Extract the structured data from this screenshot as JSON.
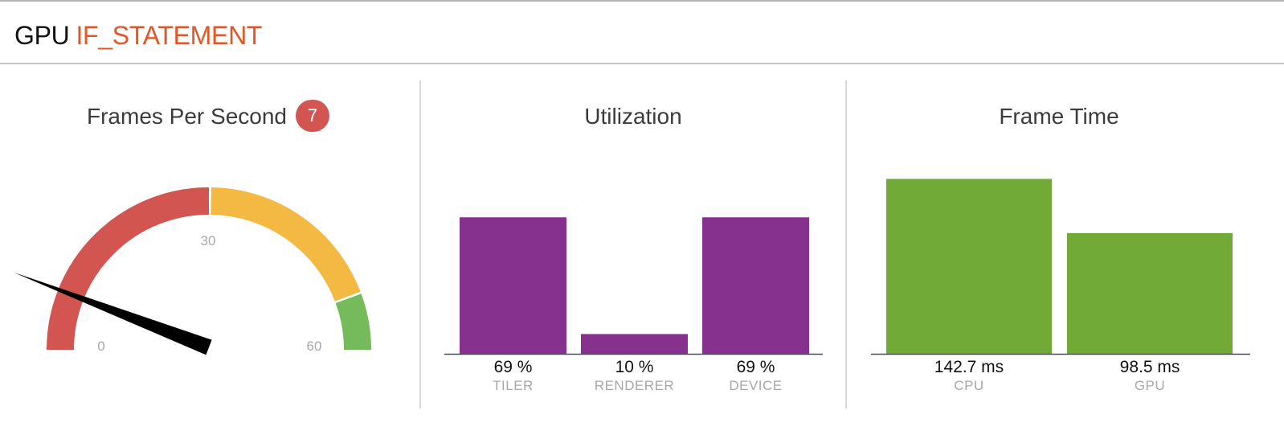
{
  "header": {
    "prefix": "GPU",
    "name": "IF_STATEMENT",
    "name_color": "#e0582a"
  },
  "fps_panel": {
    "title": "Frames Per Second",
    "badge_value": "7",
    "badge_color": "#d25552",
    "gauge": {
      "min": 0,
      "max": 60,
      "value": 7,
      "tick_labels": [
        "0",
        "30",
        "60"
      ],
      "zones": [
        {
          "from": 0,
          "to": 30,
          "color": "#d25552"
        },
        {
          "from": 30,
          "to": 53,
          "color": "#f3b943"
        },
        {
          "from": 53,
          "to": 60,
          "color": "#75bb5c"
        }
      ],
      "needle_color": "#000000"
    }
  },
  "utilization_panel": {
    "title": "Utilization",
    "bar_color": "#86318d",
    "ylim": [
      0,
      100
    ],
    "chart_data": {
      "type": "bar",
      "categories": [
        "TILER",
        "RENDERER",
        "DEVICE"
      ],
      "values": [
        69,
        10,
        69
      ],
      "value_labels": [
        "69 %",
        "10 %",
        "69 %"
      ],
      "unit": "%"
    }
  },
  "frame_time_panel": {
    "title": "Frame Time",
    "bar_color": "#72aa38",
    "ylim": [
      0,
      164
    ],
    "chart_data": {
      "type": "bar",
      "categories": [
        "CPU",
        "GPU"
      ],
      "values": [
        142.7,
        98.5
      ],
      "value_labels": [
        "142.7 ms",
        "98.5 ms"
      ],
      "unit": "ms"
    }
  }
}
